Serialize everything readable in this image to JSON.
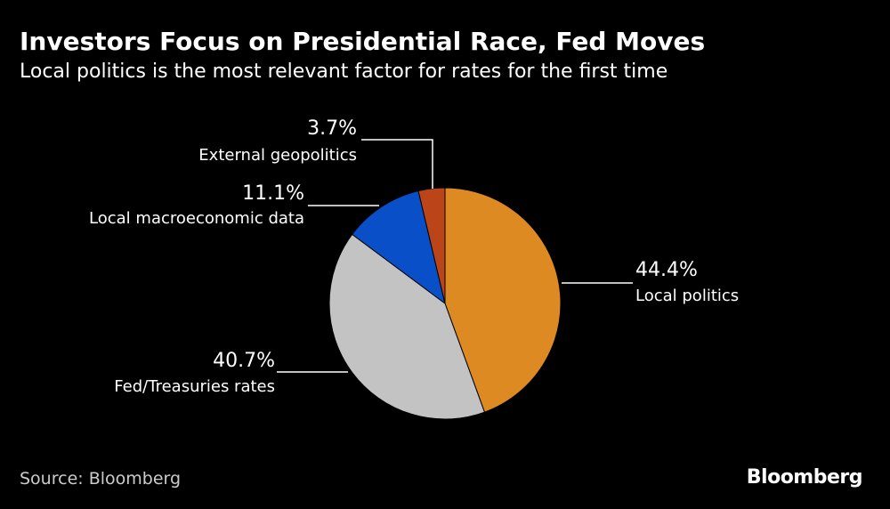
{
  "chart_data": {
    "type": "pie",
    "title": "Investors Focus on Presidential Race, Fed Moves",
    "subtitle": "Local politics is the most relevant factor for rates for the first time",
    "slices": [
      {
        "label": "Local politics",
        "value": 44.4,
        "value_label": "44.4%",
        "color": "#DE8A23"
      },
      {
        "label": "Fed/Treasuries rates",
        "value": 40.7,
        "value_label": "40.7%",
        "color": "#C3C3C3"
      },
      {
        "label": "Local macroeconomic data",
        "value": 11.1,
        "value_label": "11.1%",
        "color": "#0950C8"
      },
      {
        "label": "External geopolitics",
        "value": 3.7,
        "value_label": "3.7%",
        "color": "#BC4419"
      }
    ],
    "start_angle_deg": 0,
    "direction": "clockwise"
  },
  "footer": {
    "source": "Source: Bloomberg",
    "brand": "Bloomberg"
  }
}
